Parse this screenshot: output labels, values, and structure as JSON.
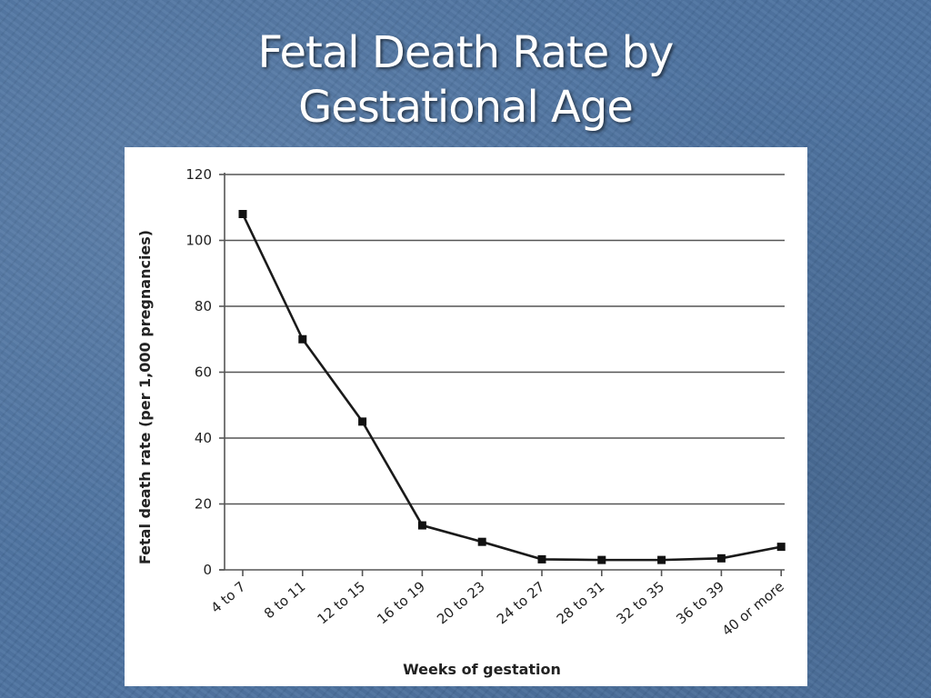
{
  "slide": {
    "title_line1": "Fetal Death Rate by",
    "title_line2": "Gestational Age"
  },
  "chart_data": {
    "type": "line",
    "title": "Fetal Death Rate by Gestational Age",
    "xlabel": "Weeks of gestation",
    "ylabel": "Fetal death rate (per 1,000 pregnancies)",
    "categories": [
      "4 to 7",
      "8 to 11",
      "12 to 15",
      "16 to 19",
      "20 to 23",
      "24 to 27",
      "28 to 31",
      "32 to 35",
      "36 to 39",
      "40 or more"
    ],
    "series": [
      {
        "values": [
          108,
          70,
          45,
          13.5,
          8.5,
          3.2,
          3.0,
          3.0,
          3.5,
          7.0
        ]
      }
    ],
    "ylim": [
      0,
      120
    ],
    "yticks": [
      0,
      20,
      40,
      60,
      80,
      100,
      120
    ],
    "grid": true,
    "legend": "none",
    "colors": {
      "line": "#1a1a1a",
      "grid": "#555555",
      "marker": "#111111"
    }
  }
}
